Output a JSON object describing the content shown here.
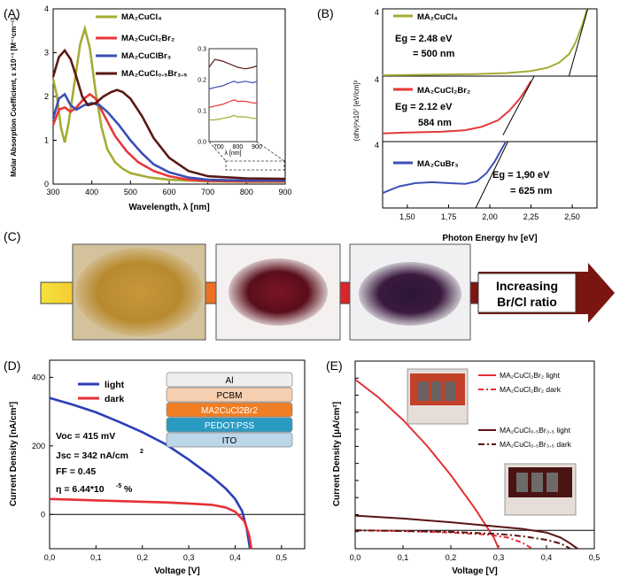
{
  "panel_labels": {
    "A": "(A)",
    "B": "(B)",
    "C": "(C)",
    "D": "(D)",
    "E": "(E)"
  },
  "colors": {
    "cl": "#a5ac32",
    "clbr2": "#e8373a",
    "clbr3": "#3b4fb5",
    "clbr35": "#5a1a14",
    "light": "#2a3eb8",
    "dark": "#e53036",
    "e_cl": "#e53036",
    "e_br": "#5a1414"
  },
  "chart_data": [
    {
      "id": "A",
      "type": "line",
      "xlabel": "Wavelength, λ [nm]",
      "ylabel": "Molar Absorption Coefficient, ε x10⁻³ [M⁻¹cm⁻¹]",
      "xlim": [
        300,
        900
      ],
      "ylim": [
        0,
        4
      ],
      "x_ticks": [
        "300",
        "400",
        "500",
        "600",
        "700",
        "800",
        "900"
      ],
      "y_ticks": [
        "0",
        "1",
        "2",
        "3",
        "4"
      ],
      "legend": [
        "MA₂CuCl₄",
        "MA₂CuCl₂Br₂",
        "MA₂CuClBr₃",
        "MA₂CuCl₀.₅Br₃.₅"
      ],
      "series": [
        {
          "name": "MA₂CuCl₄",
          "color_key": "cl",
          "points": [
            [
              300,
              2.4
            ],
            [
              310,
              2.0
            ],
            [
              320,
              1.3
            ],
            [
              330,
              0.95
            ],
            [
              340,
              1.4
            ],
            [
              355,
              2.3
            ],
            [
              370,
              3.2
            ],
            [
              382,
              3.55
            ],
            [
              395,
              3.1
            ],
            [
              410,
              2.1
            ],
            [
              425,
              1.3
            ],
            [
              440,
              0.8
            ],
            [
              460,
              0.5
            ],
            [
              480,
              0.35
            ],
            [
              500,
              0.25
            ],
            [
              550,
              0.15
            ],
            [
              600,
              0.1
            ],
            [
              700,
              0.06
            ],
            [
              800,
              0.05
            ],
            [
              900,
              0.05
            ]
          ]
        },
        {
          "name": "MA₂CuCl₂Br₂",
          "color_key": "clbr2",
          "points": [
            [
              300,
              1.35
            ],
            [
              315,
              1.7
            ],
            [
              330,
              1.75
            ],
            [
              345,
              1.65
            ],
            [
              360,
              1.75
            ],
            [
              380,
              1.95
            ],
            [
              395,
              2.05
            ],
            [
              410,
              1.95
            ],
            [
              430,
              1.6
            ],
            [
              460,
              1.1
            ],
            [
              490,
              0.75
            ],
            [
              520,
              0.5
            ],
            [
              560,
              0.3
            ],
            [
              600,
              0.18
            ],
            [
              650,
              0.1
            ],
            [
              700,
              0.07
            ],
            [
              800,
              0.06
            ],
            [
              900,
              0.06
            ]
          ]
        },
        {
          "name": "MA₂CuClBr₃",
          "color_key": "clbr3",
          "points": [
            [
              300,
              1.5
            ],
            [
              315,
              1.95
            ],
            [
              330,
              2.05
            ],
            [
              345,
              1.8
            ],
            [
              360,
              1.7
            ],
            [
              380,
              1.8
            ],
            [
              400,
              1.85
            ],
            [
              420,
              1.8
            ],
            [
              440,
              1.65
            ],
            [
              470,
              1.35
            ],
            [
              500,
              1.0
            ],
            [
              530,
              0.7
            ],
            [
              560,
              0.45
            ],
            [
              600,
              0.27
            ],
            [
              650,
              0.15
            ],
            [
              700,
              0.1
            ],
            [
              800,
              0.08
            ],
            [
              900,
              0.08
            ]
          ]
        },
        {
          "name": "MA₂CuCl₀.₅Br₃.₅",
          "color_key": "clbr35",
          "points": [
            [
              300,
              2.45
            ],
            [
              315,
              2.9
            ],
            [
              330,
              3.05
            ],
            [
              345,
              2.85
            ],
            [
              360,
              2.45
            ],
            [
              375,
              2.0
            ],
            [
              390,
              1.8
            ],
            [
              410,
              1.85
            ],
            [
              430,
              2.0
            ],
            [
              450,
              2.1
            ],
            [
              465,
              2.15
            ],
            [
              480,
              2.1
            ],
            [
              500,
              1.95
            ],
            [
              530,
              1.55
            ],
            [
              560,
              1.05
            ],
            [
              600,
              0.6
            ],
            [
              650,
              0.3
            ],
            [
              700,
              0.18
            ],
            [
              800,
              0.13
            ],
            [
              900,
              0.12
            ]
          ]
        }
      ],
      "inset": {
        "xlim": [
          650,
          900
        ],
        "ylim": [
          0,
          0.3
        ],
        "x_ticks": [
          "700",
          "800",
          "900"
        ],
        "y_ticks": [
          "0.0",
          "0.1",
          "0.2",
          "0.3"
        ],
        "xlabel": "λ [nm]",
        "series": [
          {
            "color_key": "cl",
            "points": [
              [
                650,
                0.07
              ],
              [
                680,
                0.07
              ],
              [
                720,
                0.075
              ],
              [
                760,
                0.08
              ],
              [
                780,
                0.085
              ],
              [
                800,
                0.08
              ],
              [
                840,
                0.08
              ],
              [
                880,
                0.075
              ],
              [
                900,
                0.075
              ]
            ]
          },
          {
            "color_key": "clbr2",
            "points": [
              [
                650,
                0.11
              ],
              [
                680,
                0.115
              ],
              [
                720,
                0.12
              ],
              [
                760,
                0.13
              ],
              [
                780,
                0.135
              ],
              [
                800,
                0.13
              ],
              [
                840,
                0.13
              ],
              [
                880,
                0.125
              ],
              [
                900,
                0.125
              ]
            ]
          },
          {
            "color_key": "clbr3",
            "points": [
              [
                650,
                0.17
              ],
              [
                680,
                0.175
              ],
              [
                720,
                0.18
              ],
              [
                760,
                0.19
              ],
              [
                780,
                0.195
              ],
              [
                800,
                0.19
              ],
              [
                840,
                0.195
              ],
              [
                880,
                0.19
              ],
              [
                900,
                0.195
              ]
            ]
          },
          {
            "color_key": "clbr35",
            "points": [
              [
                650,
                0.24
              ],
              [
                680,
                0.265
              ],
              [
                720,
                0.26
              ],
              [
                760,
                0.25
              ],
              [
                780,
                0.245
              ],
              [
                800,
                0.24
              ],
              [
                840,
                0.235
              ],
              [
                880,
                0.24
              ],
              [
                900,
                0.245
              ]
            ]
          }
        ]
      }
    },
    {
      "id": "B",
      "type": "line",
      "xlabel": "Photon Energy hν [eV]",
      "ylabel": "(αhν)²x10⁷ [eV/cm]²",
      "xlim": [
        1.35,
        2.65
      ],
      "x_ticks": [
        "1,50",
        "1,75",
        "2,00",
        "2,25",
        "2,50"
      ],
      "subplots": [
        {
          "name": "MA₂CuCl₄",
          "color_key": "cl",
          "ylim": [
            0,
            4
          ],
          "y_ticks": [
            "4"
          ],
          "eg": "Eg = 2.48 eV",
          "nm": "= 500 nm",
          "points": [
            [
              1.35,
              0.05
            ],
            [
              1.6,
              0.08
            ],
            [
              1.9,
              0.12
            ],
            [
              2.1,
              0.18
            ],
            [
              2.25,
              0.3
            ],
            [
              2.35,
              0.5
            ],
            [
              2.42,
              0.8
            ],
            [
              2.48,
              1.3
            ],
            [
              2.52,
              2.0
            ],
            [
              2.56,
              3.0
            ],
            [
              2.59,
              4.0
            ]
          ],
          "tangent": [
            [
              2.48,
              0
            ],
            [
              2.6,
              4.2
            ]
          ]
        },
        {
          "name": "MA₂CuCl₂Br₂",
          "color_key": "clbr2",
          "ylim": [
            0,
            4
          ],
          "y_ticks": [
            "4"
          ],
          "eg": "Eg = 2.12 eV",
          "nm": "584 nm",
          "points": [
            [
              1.35,
              0.5
            ],
            [
              1.5,
              0.55
            ],
            [
              1.7,
              0.6
            ],
            [
              1.85,
              0.7
            ],
            [
              1.95,
              0.9
            ],
            [
              2.05,
              1.3
            ],
            [
              2.12,
              1.9
            ],
            [
              2.18,
              2.6
            ],
            [
              2.22,
              3.2
            ],
            [
              2.25,
              3.7
            ]
          ],
          "tangent": [
            [
              2.08,
              0.4
            ],
            [
              2.28,
              4.2
            ]
          ]
        },
        {
          "name": "MA₂CuBr₃",
          "color_key": "clbr3",
          "ylim": [
            0,
            4
          ],
          "y_ticks": [
            "4"
          ],
          "eg": "Eg = 1,90 eV",
          "nm": "= 625 nm",
          "points": [
            [
              1.35,
              0.9
            ],
            [
              1.45,
              1.3
            ],
            [
              1.55,
              1.5
            ],
            [
              1.65,
              1.55
            ],
            [
              1.75,
              1.5
            ],
            [
              1.85,
              1.45
            ],
            [
              1.92,
              1.6
            ],
            [
              1.98,
              2.1
            ],
            [
              2.03,
              2.8
            ],
            [
              2.08,
              3.7
            ],
            [
              2.11,
              4.2
            ]
          ],
          "tangent": [
            [
              1.9,
              -0.3
            ],
            [
              2.12,
              4.2
            ]
          ]
        }
      ]
    },
    {
      "id": "D",
      "type": "line",
      "xlabel": "Voltage [V]",
      "ylabel": "Current Density [nA/cm²]",
      "xlim": [
        0,
        0.55
      ],
      "ylim": [
        -100,
        450
      ],
      "x_ticks": [
        "0,0",
        "0,1",
        "0,2",
        "0,3",
        "0,4",
        "0,5"
      ],
      "y_ticks": [
        "0",
        "200",
        "400"
      ],
      "legend": [
        "light",
        "dark"
      ],
      "series": [
        {
          "name": "light",
          "color_key": "light",
          "points": [
            [
              0,
              340
            ],
            [
              0.05,
              320
            ],
            [
              0.1,
              298
            ],
            [
              0.15,
              270
            ],
            [
              0.2,
              240
            ],
            [
              0.25,
              205
            ],
            [
              0.3,
              160
            ],
            [
              0.35,
              110
            ],
            [
              0.38,
              75
            ],
            [
              0.4,
              45
            ],
            [
              0.415,
              10
            ],
            [
              0.425,
              -40
            ],
            [
              0.432,
              -100
            ]
          ]
        },
        {
          "name": "dark",
          "color_key": "dark",
          "points": [
            [
              0,
              45
            ],
            [
              0.05,
              43
            ],
            [
              0.1,
              41
            ],
            [
              0.15,
              39
            ],
            [
              0.2,
              37
            ],
            [
              0.25,
              35
            ],
            [
              0.3,
              32
            ],
            [
              0.35,
              28
            ],
            [
              0.38,
              20
            ],
            [
              0.4,
              8
            ],
            [
              0.42,
              -20
            ],
            [
              0.43,
              -60
            ],
            [
              0.435,
              -100
            ]
          ]
        }
      ],
      "stack_layers": [
        "Al",
        "PCBM",
        "MA2CuCl2Br2",
        "PEDOT:PSS",
        "ITO"
      ],
      "params": [
        "Voc = 415 mV",
        "Jsc = 342 nA/cm",
        "FF = 0.45",
        "η = 6.44*10",
        "%"
      ]
    },
    {
      "id": "E",
      "type": "line",
      "xlabel": "Voltage [V]",
      "ylabel": "Current Density [μA/cm²]",
      "xlim": [
        0,
        0.5
      ],
      "ylim": [
        -25,
        230
      ],
      "x_ticks": [
        "0,0",
        "0,1",
        "0,2",
        "0,3",
        "0,4",
        "0,5"
      ],
      "legend": [
        "MA₂CuCl₂Br₂ light",
        "MA₂CuCl₂Br₂ dark",
        "MA₂CuCl₀.₅Br₃.₅ light",
        "MA₂CuCl₀.₅Br₃.₅ dark"
      ],
      "series": [
        {
          "name": "MA₂CuCl₂Br₂ light",
          "color_key": "e_cl",
          "dash": "",
          "points": [
            [
              0,
              205
            ],
            [
              0.05,
              180
            ],
            [
              0.1,
              150
            ],
            [
              0.15,
              115
            ],
            [
              0.2,
              75
            ],
            [
              0.25,
              30
            ],
            [
              0.27,
              10
            ],
            [
              0.29,
              -10
            ],
            [
              0.3,
              -25
            ]
          ]
        },
        {
          "name": "MA₂CuCl₂Br₂ dark",
          "color_key": "e_cl",
          "dash": "6,3,2,3",
          "points": [
            [
              0,
              0
            ],
            [
              0.1,
              -1
            ],
            [
              0.2,
              -3
            ],
            [
              0.28,
              -6
            ],
            [
              0.32,
              -10
            ],
            [
              0.35,
              -17
            ],
            [
              0.37,
              -25
            ]
          ]
        },
        {
          "name": "MA₂CuCl₀.₅Br₃.₅ light",
          "color_key": "e_br",
          "dash": "",
          "points": [
            [
              0,
              20
            ],
            [
              0.1,
              16
            ],
            [
              0.2,
              11
            ],
            [
              0.3,
              5
            ],
            [
              0.35,
              2
            ],
            [
              0.4,
              -3
            ],
            [
              0.43,
              -10
            ],
            [
              0.45,
              -18
            ],
            [
              0.465,
              -25
            ]
          ]
        },
        {
          "name": "MA₂CuCl₀.₅Br₃.₅ dark",
          "color_key": "e_br",
          "dash": "7,3,2,3",
          "points": [
            [
              0,
              0
            ],
            [
              0.1,
              -1
            ],
            [
              0.2,
              -2
            ],
            [
              0.3,
              -5
            ],
            [
              0.35,
              -8
            ],
            [
              0.4,
              -13
            ],
            [
              0.43,
              -18
            ],
            [
              0.45,
              -25
            ]
          ]
        }
      ]
    }
  ],
  "panel_c": {
    "arrow_text_1": "Increasing",
    "arrow_text_2": "Br/Cl ratio"
  }
}
